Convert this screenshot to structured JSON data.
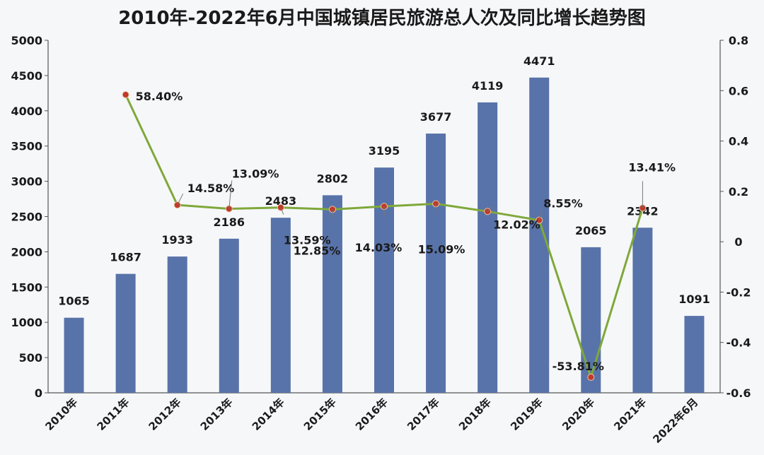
{
  "chart_data": {
    "type": "bar",
    "title": "2010年-2022年6月中国城镇居民旅游总人次及同比增长趋势图",
    "categories": [
      "2010年",
      "2011年",
      "2012年",
      "2013年",
      "2014年",
      "2015年",
      "2016年",
      "2017年",
      "2018年",
      "2019年",
      "2020年",
      "2021年",
      "2022年6月"
    ],
    "series": [
      {
        "type": "bar",
        "axis": "left",
        "values": [
          1065,
          1687,
          1933,
          2186,
          2483,
          2802,
          3195,
          3677,
          4119,
          4471,
          2065,
          2342,
          1091
        ],
        "color": "#5873a9"
      },
      {
        "type": "line",
        "axis": "right",
        "values": [
          null,
          0.584,
          0.1458,
          0.1309,
          0.1359,
          0.1285,
          0.1403,
          0.1509,
          0.1202,
          0.0855,
          -0.5381,
          0.1341,
          null
        ],
        "labels": [
          "",
          "58.40%",
          "14.58%",
          "13.09%",
          "13.59%",
          "12.85%",
          "14.03%",
          "15.09%",
          "12.02%",
          "8.55%",
          "-53.81%",
          "13.41%",
          ""
        ],
        "color": "#7fa83a",
        "marker_color": "#c0392b"
      }
    ],
    "y_left": {
      "ylim": [
        0,
        5000
      ],
      "ticks": [
        0,
        500,
        1000,
        1500,
        2000,
        2500,
        3000,
        3500,
        4000,
        4500,
        5000
      ]
    },
    "y_right": {
      "ylim": [
        -0.6,
        0.8
      ],
      "ticks": [
        "0.8",
        "0.6",
        "0.4",
        "0.2",
        "0",
        "-0.2",
        "-0.4",
        "-0.6"
      ]
    },
    "grid": false,
    "legend": "none"
  }
}
